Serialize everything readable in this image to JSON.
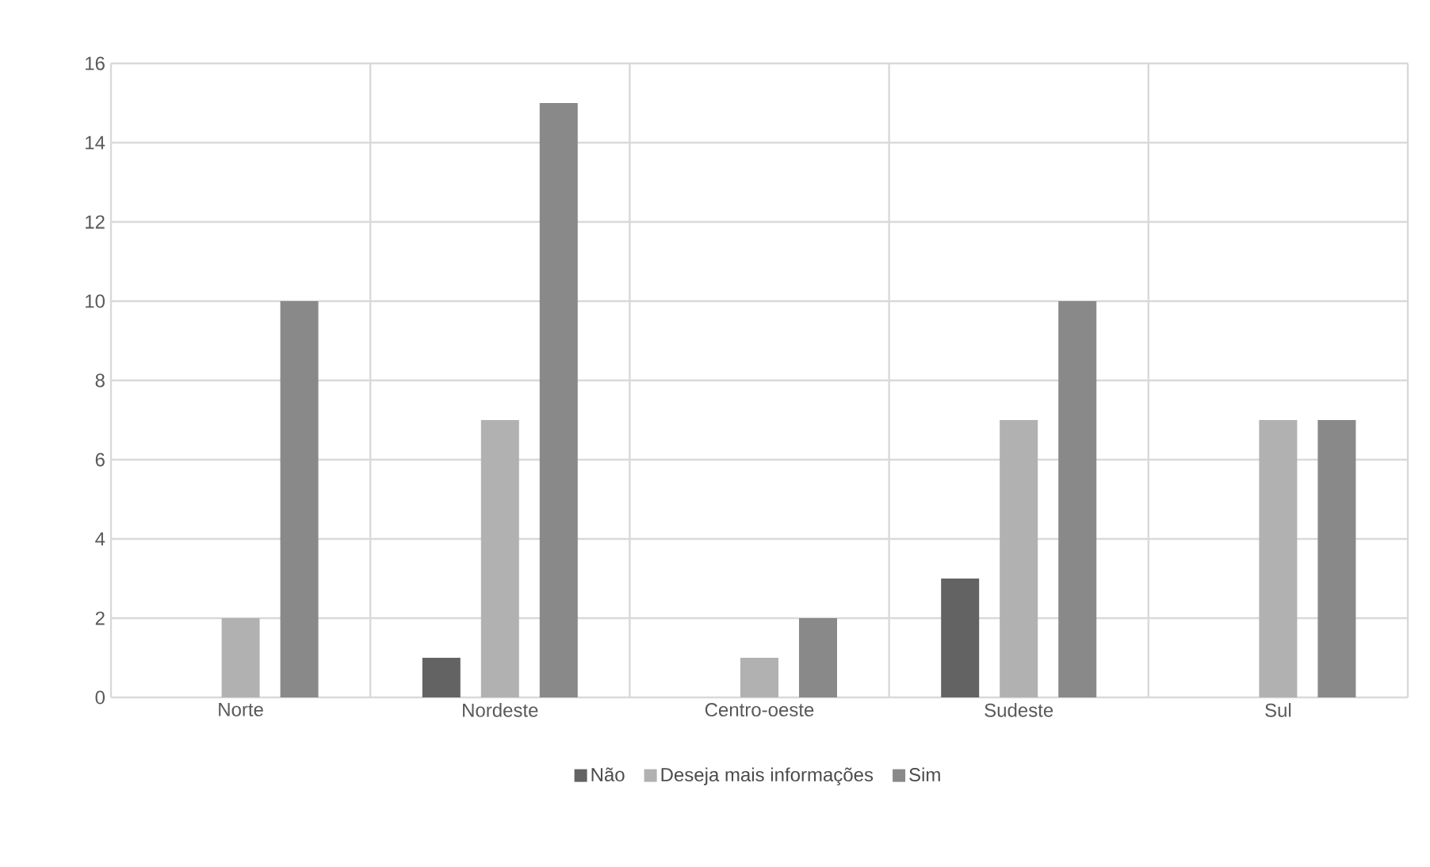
{
  "chart_data": {
    "type": "bar",
    "categories": [
      "Norte",
      "Nordeste",
      "Centro-oeste",
      "Sudeste",
      "Sul"
    ],
    "series": [
      {
        "name": "Não",
        "color": "#636363",
        "values": [
          0,
          1,
          0,
          3,
          0
        ]
      },
      {
        "name": "Deseja mais informações",
        "color": "#b1b1b1",
        "values": [
          2,
          7,
          1,
          7,
          7
        ]
      },
      {
        "name": "Sim",
        "color": "#898989",
        "values": [
          10,
          15,
          2,
          10,
          7
        ]
      }
    ],
    "ylim": [
      0,
      16
    ],
    "yticks": [
      0,
      2,
      4,
      6,
      8,
      10,
      12,
      14,
      16
    ],
    "grid": true,
    "legend": "bottom"
  }
}
